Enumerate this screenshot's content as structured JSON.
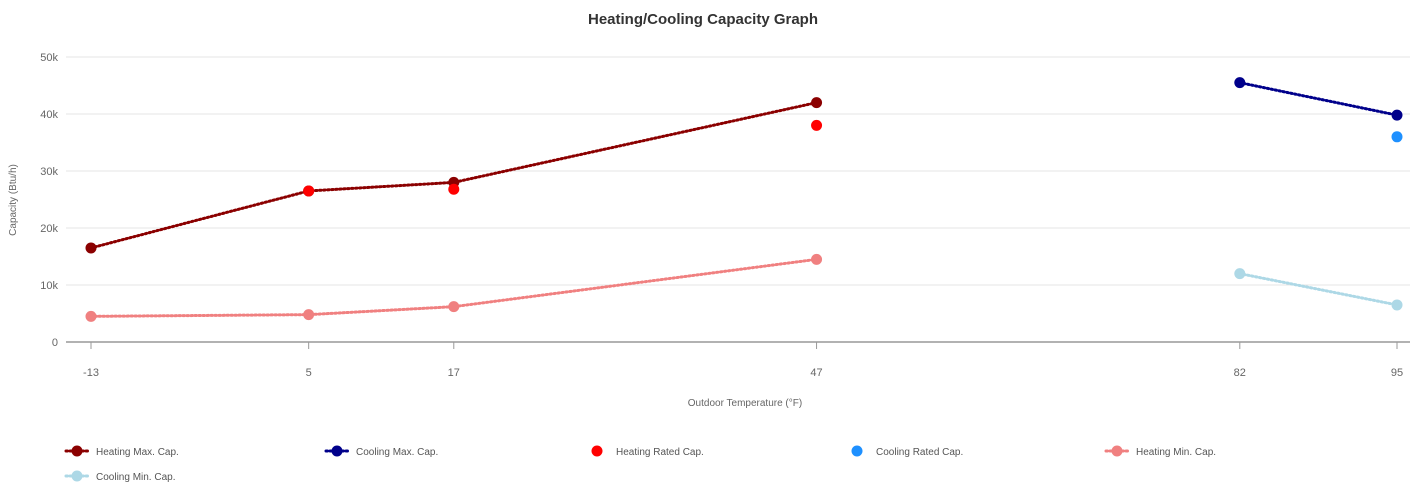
{
  "chart_data": {
    "type": "line",
    "title": "Heating/Cooling Capacity Graph",
    "xlabel": "Outdoor Temperature (°F)",
    "ylabel": "Capacity (Btu/h)",
    "x_ticks": [
      "-13",
      "5",
      "17",
      "47",
      "82",
      "95"
    ],
    "xlim": [
      -13,
      95
    ],
    "y_ticks": [
      "0",
      "10k",
      "20k",
      "30k",
      "40k",
      "50k"
    ],
    "ylim": [
      0,
      50000
    ],
    "grid": "horizontal",
    "legend_position": "bottom-left",
    "series": [
      {
        "name": "Heating Max. Cap.",
        "color": "#8b0000",
        "line": true,
        "points": [
          [
            -13,
            16500
          ],
          [
            5,
            26500
          ],
          [
            17,
            28000
          ],
          [
            47,
            42000
          ]
        ]
      },
      {
        "name": "Cooling Max. Cap.",
        "color": "#00008b",
        "line": true,
        "points": [
          [
            82,
            45500
          ],
          [
            95,
            39800
          ]
        ]
      },
      {
        "name": "Heating Rated Cap.",
        "color": "#ff0000",
        "line": false,
        "points": [
          [
            5,
            26500
          ],
          [
            17,
            26800
          ],
          [
            47,
            38000
          ]
        ]
      },
      {
        "name": "Cooling Rated Cap.",
        "color": "#1e90ff",
        "line": false,
        "points": [
          [
            95,
            36000
          ]
        ]
      },
      {
        "name": "Heating Min. Cap.",
        "color": "#f08080",
        "line": true,
        "points": [
          [
            -13,
            4500
          ],
          [
            5,
            4800
          ],
          [
            17,
            6200
          ],
          [
            47,
            14500
          ]
        ]
      },
      {
        "name": "Cooling Min. Cap.",
        "color": "#add8e6",
        "line": true,
        "points": [
          [
            82,
            12000
          ],
          [
            95,
            6500
          ]
        ]
      }
    ]
  }
}
